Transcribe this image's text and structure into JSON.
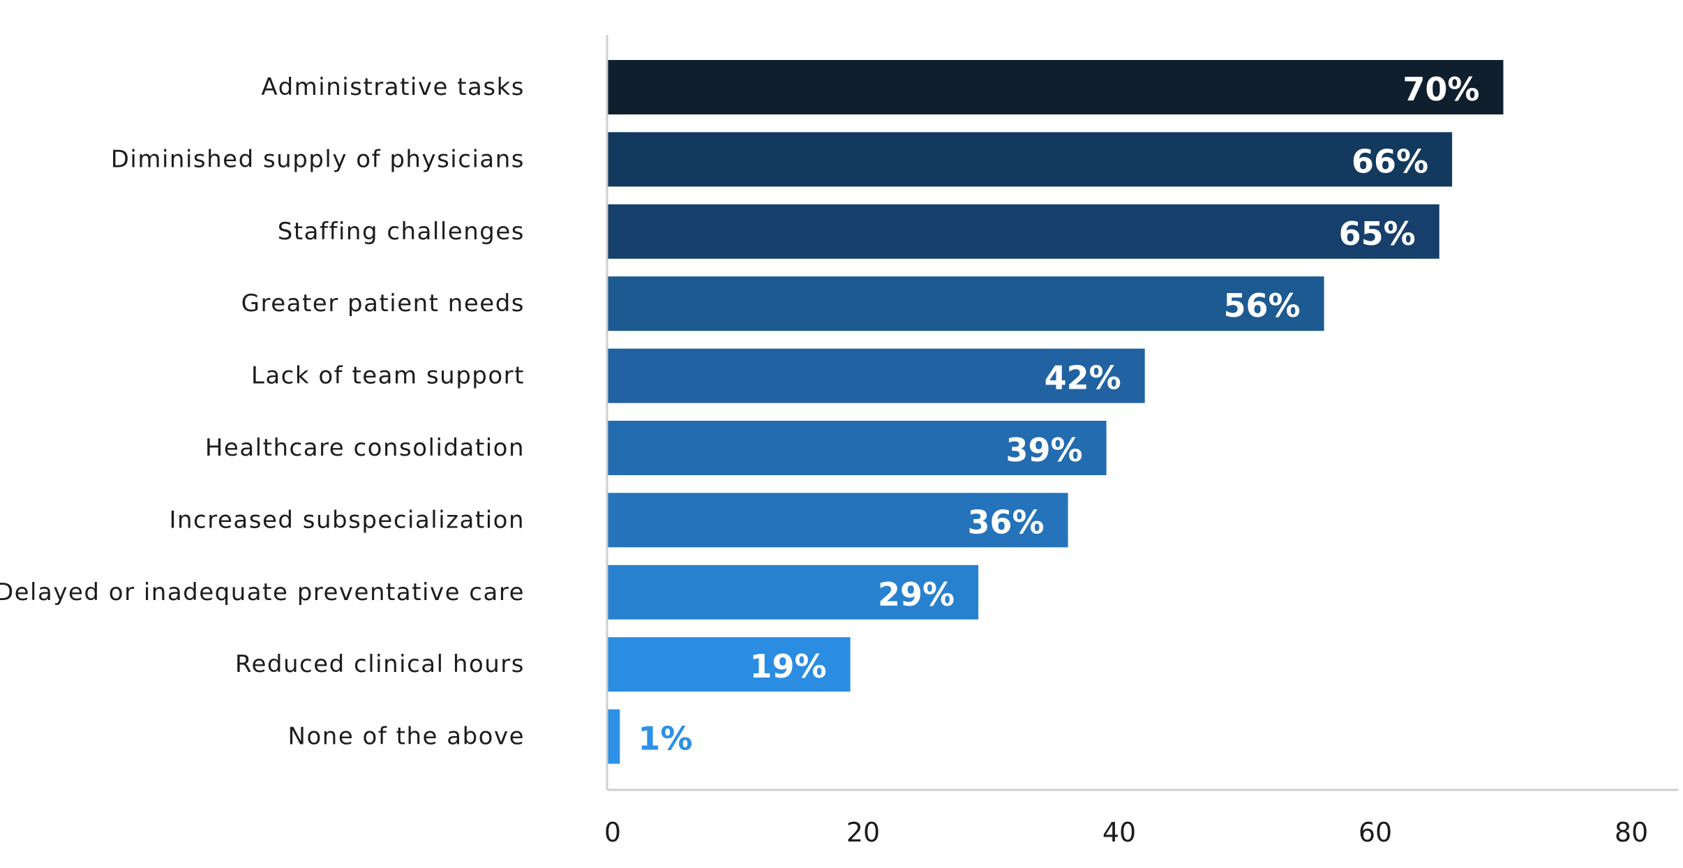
{
  "chart_data": {
    "type": "bar",
    "orientation": "horizontal",
    "categories": [
      "Administrative tasks",
      "Diminished supply of physicians",
      "Staffing challenges",
      "Greater patient needs",
      "Lack of team support",
      "Healthcare consolidation",
      "Increased subspecialization",
      "Delayed or inadequate preventative care",
      "Reduced clinical hours",
      "None of the above"
    ],
    "values": [
      70,
      66,
      65,
      56,
      42,
      39,
      36,
      29,
      19,
      1
    ],
    "value_labels": [
      "70%",
      "66%",
      "65%",
      "56%",
      "42%",
      "39%",
      "36%",
      "29%",
      "19%",
      "1%"
    ],
    "bar_colors": [
      "#0f1f2e",
      "#133a5e",
      "#173f6b",
      "#1d5a91",
      "#2163a2",
      "#236caf",
      "#2573bb",
      "#2881ce",
      "#2a8de2",
      "#2d90e6"
    ],
    "label_color_inside": "#ffffff",
    "label_color_outside": "#2d90e6",
    "xlim": [
      0,
      80
    ],
    "xticks": [
      "0",
      "20",
      "40",
      "60",
      "80"
    ],
    "title": "",
    "xlabel": "",
    "ylabel": "",
    "grid": false,
    "axis_color": "#cfcfcf"
  }
}
